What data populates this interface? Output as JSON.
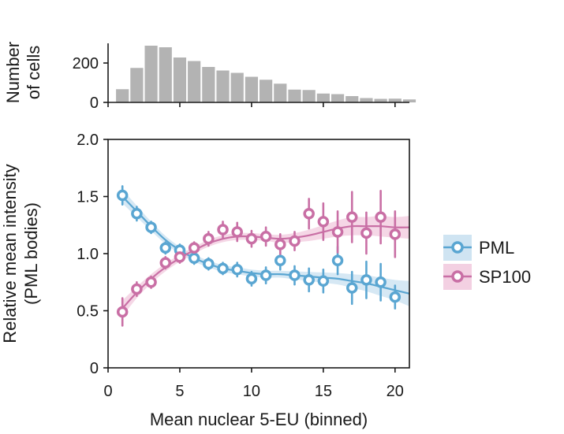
{
  "chart_data": [
    {
      "type": "bar",
      "title": "",
      "ylabel": [
        "Number",
        "of cells"
      ],
      "yticks": [
        0,
        200
      ],
      "ylim": [
        0,
        300
      ],
      "xlim": [
        0,
        21
      ],
      "xticks": [
        0,
        5,
        10,
        15,
        20
      ],
      "bar_color": "#b3b3b3",
      "x": [
        1,
        2,
        3,
        4,
        5,
        6,
        7,
        8,
        9,
        10,
        11,
        12,
        13,
        14,
        15,
        16,
        17,
        18,
        19,
        20,
        21
      ],
      "values": [
        67,
        175,
        288,
        280,
        228,
        210,
        180,
        162,
        150,
        130,
        115,
        95,
        65,
        63,
        45,
        42,
        32,
        22,
        18,
        19,
        15
      ]
    },
    {
      "type": "line",
      "xlabel": "Mean nuclear 5-EU (binned)",
      "ylabel": [
        "Relative mean intensity",
        "(PML bodies)"
      ],
      "xlim": [
        0,
        21
      ],
      "ylim": [
        0,
        2.0
      ],
      "xticks": [
        0,
        5,
        10,
        15,
        20
      ],
      "yticks": [
        "0",
        "0.5",
        "1.0",
        "1.5",
        "2.0"
      ],
      "series": [
        {
          "name": "PML",
          "color": "#5aa6d2",
          "band_color": "#cfe4f2",
          "x": [
            1,
            2,
            3,
            4,
            5,
            6,
            7,
            8,
            9,
            10,
            11,
            12,
            13,
            14,
            15,
            16,
            17,
            18,
            19,
            20
          ],
          "y": [
            1.51,
            1.35,
            1.23,
            1.05,
            1.03,
            0.96,
            0.91,
            0.87,
            0.86,
            0.78,
            0.81,
            0.94,
            0.81,
            0.77,
            0.76,
            0.94,
            0.7,
            0.77,
            0.75,
            0.62
          ],
          "err": [
            0.08,
            0.06,
            0.05,
            0.05,
            0.05,
            0.05,
            0.05,
            0.05,
            0.06,
            0.06,
            0.07,
            0.08,
            0.08,
            0.1,
            0.1,
            0.12,
            0.14,
            0.16,
            0.16,
            0.1
          ],
          "fit": [
            [
              1,
              1.5
            ],
            [
              2,
              1.37
            ],
            [
              3,
              1.24
            ],
            [
              4,
              1.12
            ],
            [
              5,
              1.03
            ],
            [
              6,
              0.96
            ],
            [
              7,
              0.91
            ],
            [
              8,
              0.87
            ],
            [
              9,
              0.85
            ],
            [
              10,
              0.83
            ],
            [
              11,
              0.82
            ],
            [
              12,
              0.82
            ],
            [
              13,
              0.81
            ],
            [
              14,
              0.8
            ],
            [
              15,
              0.79
            ],
            [
              16,
              0.78
            ],
            [
              17,
              0.76
            ],
            [
              18,
              0.74
            ],
            [
              19,
              0.71
            ],
            [
              20,
              0.68
            ],
            [
              21,
              0.65
            ]
          ],
          "band_w": [
            0.06,
            0.05,
            0.04,
            0.035,
            0.03,
            0.03,
            0.03,
            0.03,
            0.03,
            0.03,
            0.03,
            0.03,
            0.035,
            0.04,
            0.045,
            0.05,
            0.06,
            0.07,
            0.08,
            0.09,
            0.11
          ]
        },
        {
          "name": "SP100",
          "color": "#c96fa5",
          "band_color": "#f3d0e2",
          "x": [
            1,
            2,
            3,
            4,
            5,
            6,
            7,
            8,
            9,
            10,
            11,
            12,
            13,
            14,
            15,
            16,
            17,
            18,
            19,
            20
          ],
          "y": [
            0.49,
            0.69,
            0.75,
            0.92,
            0.97,
            1.05,
            1.13,
            1.21,
            1.19,
            1.13,
            1.15,
            1.08,
            1.11,
            1.35,
            1.28,
            1.19,
            1.32,
            1.18,
            1.32,
            1.17
          ],
          "err": [
            0.12,
            0.06,
            0.05,
            0.05,
            0.05,
            0.05,
            0.06,
            0.07,
            0.08,
            0.07,
            0.08,
            0.09,
            0.08,
            0.13,
            0.16,
            0.18,
            0.22,
            0.18,
            0.23,
            0.2
          ],
          "fit": [
            [
              1,
              0.52
            ],
            [
              2,
              0.66
            ],
            [
              3,
              0.78
            ],
            [
              4,
              0.88
            ],
            [
              5,
              0.96
            ],
            [
              6,
              1.03
            ],
            [
              7,
              1.09
            ],
            [
              8,
              1.13
            ],
            [
              9,
              1.15
            ],
            [
              10,
              1.15
            ],
            [
              11,
              1.14
            ],
            [
              12,
              1.13
            ],
            [
              13,
              1.14
            ],
            [
              14,
              1.16
            ],
            [
              15,
              1.19
            ],
            [
              16,
              1.22
            ],
            [
              17,
              1.24
            ],
            [
              18,
              1.24
            ],
            [
              19,
              1.24
            ],
            [
              20,
              1.23
            ],
            [
              21,
              1.23
            ]
          ],
          "band_w": [
            0.07,
            0.05,
            0.04,
            0.035,
            0.03,
            0.03,
            0.03,
            0.03,
            0.03,
            0.03,
            0.03,
            0.035,
            0.04,
            0.05,
            0.06,
            0.07,
            0.08,
            0.08,
            0.09,
            0.09,
            0.1
          ]
        }
      ],
      "legend": [
        "PML",
        "SP100"
      ],
      "legend_position": "right"
    }
  ]
}
